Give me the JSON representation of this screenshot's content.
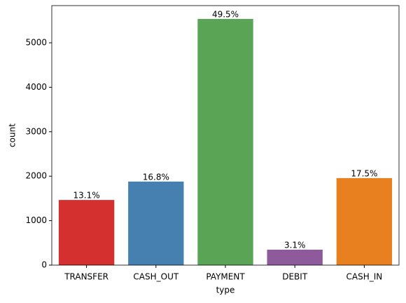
{
  "chart_data": {
    "type": "bar",
    "x_label": "type",
    "y_label": "count",
    "categories": [
      "TRANSFER",
      "CASH_OUT",
      "PAYMENT",
      "DEBIT",
      "CASH_IN"
    ],
    "values": [
      1465,
      1879,
      5536,
      347,
      1957
    ],
    "annotations": [
      "13.1%",
      "16.8%",
      "49.5%",
      "3.1%",
      "17.5%"
    ],
    "colors": [
      "#d3302f",
      "#4580b0",
      "#5aa555",
      "#8f5a9b",
      "#e8801f"
    ],
    "ylim": [
      0,
      5836
    ],
    "yticks": [
      0,
      1000,
      2000,
      3000,
      4000,
      5000
    ],
    "grid": false
  }
}
